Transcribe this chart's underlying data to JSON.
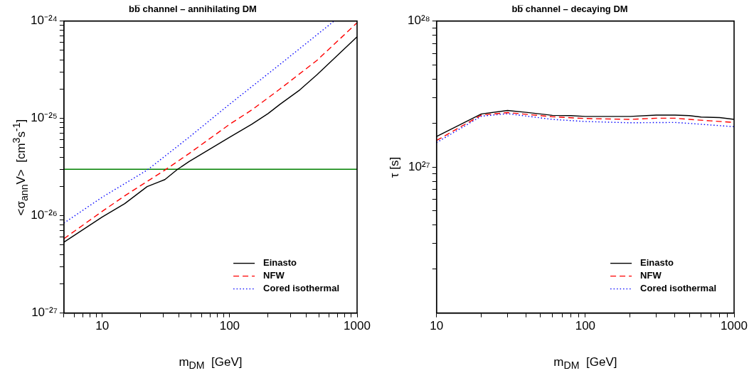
{
  "chart_data": [
    {
      "type": "line",
      "title": "bb̅ channel – annihilating DM",
      "xlabel": "m$_{DM}$  [GeV]",
      "ylabel": "<σ$_{ann}$V>  [cm$^{3}$s$^{-1}$]",
      "log": "xy",
      "grid": false,
      "legend": "bottom right",
      "xlim": [
        5,
        1000
      ],
      "ylim": [
        1e-27,
        1e-24
      ],
      "xticks": [
        {
          "value": 5,
          "label": null
        },
        {
          "value": 6,
          "label": null
        },
        {
          "value": 7,
          "label": null
        },
        {
          "value": 8,
          "label": null
        },
        {
          "value": 9,
          "label": null
        },
        10,
        {
          "value": 20,
          "label": null
        },
        {
          "value": 30,
          "label": null
        },
        {
          "value": 40,
          "label": null
        },
        {
          "value": 50,
          "label": null
        },
        {
          "value": 60,
          "label": null
        },
        {
          "value": 70,
          "label": null
        },
        {
          "value": 80,
          "label": null
        },
        {
          "value": 90,
          "label": null
        },
        100,
        {
          "value": 200,
          "label": null
        },
        {
          "value": 300,
          "label": null
        },
        {
          "value": 400,
          "label": null
        },
        {
          "value": 500,
          "label": null
        },
        {
          "value": 600,
          "label": null
        },
        {
          "value": 700,
          "label": null
        },
        {
          "value": 800,
          "label": null
        },
        {
          "value": 900,
          "label": null
        },
        1000
      ],
      "yticks": [
        {
          "value": 1e-27,
          "label": "10⁻²⁷"
        },
        {
          "value": 2e-27,
          "label": null
        },
        {
          "value": 3e-27,
          "label": null
        },
        {
          "value": 4e-27,
          "label": null
        },
        {
          "value": 5e-27,
          "label": null
        },
        {
          "value": 6e-27,
          "label": null
        },
        {
          "value": 7e-27,
          "label": null
        },
        {
          "value": 8e-27,
          "label": null
        },
        {
          "value": 9e-27,
          "label": null
        },
        {
          "value": 1e-26,
          "label": "10⁻²⁶"
        },
        {
          "value": 2e-26,
          "label": null
        },
        {
          "value": 3e-26,
          "label": null
        },
        {
          "value": 4e-26,
          "label": null
        },
        {
          "value": 5e-26,
          "label": null
        },
        {
          "value": 6e-26,
          "label": null
        },
        {
          "value": 7e-26,
          "label": null
        },
        {
          "value": 8e-26,
          "label": null
        },
        {
          "value": 9e-26,
          "label": null
        },
        {
          "value": 1e-25,
          "label": "10⁻²⁵"
        },
        {
          "value": 2e-25,
          "label": null
        },
        {
          "value": 3e-25,
          "label": null
        },
        {
          "value": 4e-25,
          "label": null
        },
        {
          "value": 5e-25,
          "label": null
        },
        {
          "value": 6e-25,
          "label": null
        },
        {
          "value": 7e-25,
          "label": null
        },
        {
          "value": 8e-25,
          "label": null
        },
        {
          "value": 9e-25,
          "label": null
        },
        {
          "value": 1e-24,
          "label": "10⁻²⁴"
        }
      ],
      "ref_lines": [
        {
          "axis": "y",
          "value": 3e-26,
          "color": "#008000"
        }
      ],
      "series": [
        {
          "name": "Einasto",
          "color": "#000000",
          "line_style": "solid",
          "x": [
            5,
            10,
            15,
            22.5,
            31,
            39,
            48,
            100,
            149,
            200,
            249,
            355,
            484,
            1000
          ],
          "values": [
            5.35e-27,
            9.7e-27,
            1.33e-26,
            1.99e-26,
            2.35e-26,
            3e-26,
            3.6e-26,
            6.4e-26,
            8.7e-26,
            1.12e-25,
            1.4e-25,
            1.96e-25,
            2.8e-25,
            6.9e-25
          ]
        },
        {
          "name": "NFW",
          "color": "#ff0000",
          "line_style": "dashed",
          "x": [
            5,
            10,
            15,
            31,
            48,
            100,
            149,
            249,
            484,
            1000
          ],
          "values": [
            5.8e-27,
            1.11e-26,
            1.6e-26,
            2.94e-26,
            4.35e-26,
            8.7e-26,
            1.22e-25,
            2.01e-25,
            3.94e-25,
            9.6e-25
          ]
        },
        {
          "name": "Cored isothermal",
          "color": "#0000ff",
          "line_style": "dotted",
          "x": [
            5,
            10,
            22.5,
            48,
            100,
            249,
            660
          ],
          "values": [
            8.4e-27,
            1.55e-26,
            2.94e-26,
            6.4e-26,
            1.4e-25,
            3.6e-25,
            1e-24
          ]
        }
      ]
    },
    {
      "type": "line",
      "title": "bb̅ channel – decaying DM",
      "xlabel": "m$_{DM}$  [GeV]",
      "ylabel": "τ [s]",
      "log": "xy",
      "grid": false,
      "legend": "bottom right",
      "xlim": [
        10,
        1000
      ],
      "ylim": [
        1e+26,
        1e+28
      ],
      "xticks": [
        10,
        {
          "value": 20,
          "label": null
        },
        {
          "value": 30,
          "label": null
        },
        {
          "value": 40,
          "label": null
        },
        {
          "value": 50,
          "label": null
        },
        {
          "value": 60,
          "label": null
        },
        {
          "value": 70,
          "label": null
        },
        {
          "value": 80,
          "label": null
        },
        {
          "value": 90,
          "label": null
        },
        100,
        {
          "value": 200,
          "label": null
        },
        {
          "value": 300,
          "label": null
        },
        {
          "value": 400,
          "label": null
        },
        {
          "value": 500,
          "label": null
        },
        {
          "value": 600,
          "label": null
        },
        {
          "value": 700,
          "label": null
        },
        {
          "value": 800,
          "label": null
        },
        {
          "value": 900,
          "label": null
        },
        1000
      ],
      "yticks": [
        {
          "value": 2e+26,
          "label": null
        },
        {
          "value": 3e+26,
          "label": null
        },
        {
          "value": 4e+26,
          "label": null
        },
        {
          "value": 5e+26,
          "label": null
        },
        {
          "value": 6e+26,
          "label": null
        },
        {
          "value": 7e+26,
          "label": null
        },
        {
          "value": 8e+26,
          "label": null
        },
        {
          "value": 9e+26,
          "label": null
        },
        {
          "value": 1e+27,
          "label": "10²⁷"
        },
        {
          "value": 2e+27,
          "label": null
        },
        {
          "value": 3e+27,
          "label": null
        },
        {
          "value": 4e+27,
          "label": null
        },
        {
          "value": 5e+27,
          "label": null
        },
        {
          "value": 6e+27,
          "label": null
        },
        {
          "value": 7e+27,
          "label": null
        },
        {
          "value": 8e+27,
          "label": null
        },
        {
          "value": 9e+27,
          "label": null
        },
        {
          "value": 1e+28,
          "label": "10²⁸"
        }
      ],
      "series": [
        {
          "name": "Einasto",
          "color": "#000000",
          "line_style": "solid",
          "x": [
            10,
            20,
            30,
            40,
            60,
            80,
            100,
            200,
            300,
            400,
            500,
            600,
            800,
            1000
          ],
          "values": [
            1.62e+27,
            2.31e+27,
            2.44e+27,
            2.37e+27,
            2.26e+27,
            2.25e+27,
            2.22e+27,
            2.22e+27,
            2.27e+27,
            2.27e+27,
            2.25e+27,
            2.2e+27,
            2.18e+27,
            2.12e+27
          ]
        },
        {
          "name": "NFW",
          "color": "#ff0000",
          "line_style": "dashed",
          "x": [
            10,
            20,
            30,
            60,
            100,
            200,
            300,
            400,
            500,
            700,
            1000
          ],
          "values": [
            1.52e+27,
            2.27e+27,
            2.36e+27,
            2.21e+27,
            2.15e+27,
            2.12e+27,
            2.16e+27,
            2.16e+27,
            2.12e+27,
            2.07e+27,
            2.02e+27
          ]
        },
        {
          "name": "Cored isothermal",
          "color": "#0000ff",
          "line_style": "dotted",
          "x": [
            10,
            20,
            30,
            60,
            100,
            200,
            400,
            500,
            700,
            1000
          ],
          "values": [
            1.47e+27,
            2.23e+27,
            2.32e+27,
            2.12e+27,
            2.05e+27,
            2.01e+27,
            2.02e+27,
            1.99e+27,
            1.94e+27,
            1.89e+27
          ]
        }
      ]
    }
  ]
}
